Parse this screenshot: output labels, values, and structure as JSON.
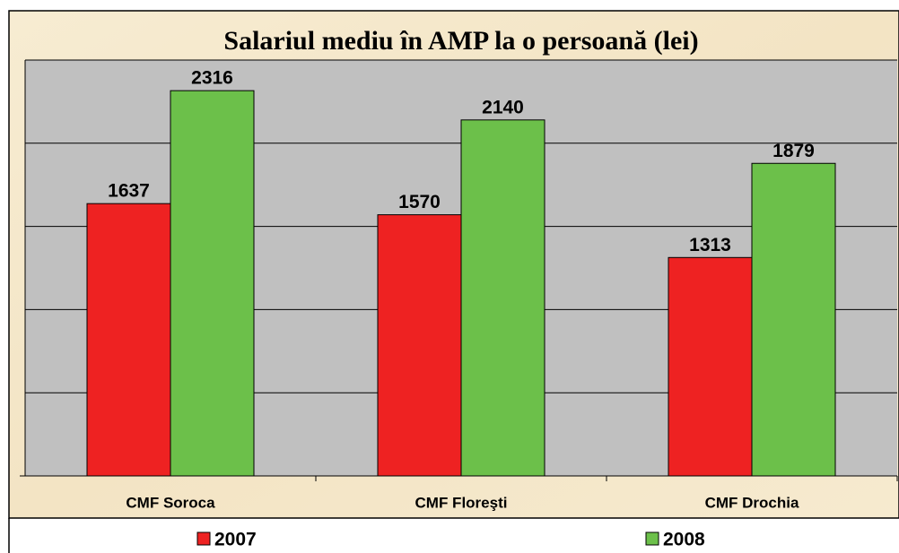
{
  "chart_data": {
    "type": "bar",
    "title": "Salariul mediu în AMP la o persoană (lei)",
    "categories": [
      "CMF Soroca",
      "CMF Floreşti",
      "CMF Drochia"
    ],
    "series": [
      {
        "name": "2007",
        "color": "#ee2222",
        "values": [
          1637,
          1570,
          1313
        ]
      },
      {
        "name": "2008",
        "color": "#6cc04a",
        "values": [
          2316,
          2140,
          1879
        ]
      }
    ],
    "ylim": [
      0,
      2500
    ],
    "yticks": [
      0,
      500,
      1000,
      1500,
      2000,
      2500
    ],
    "grid": true
  }
}
